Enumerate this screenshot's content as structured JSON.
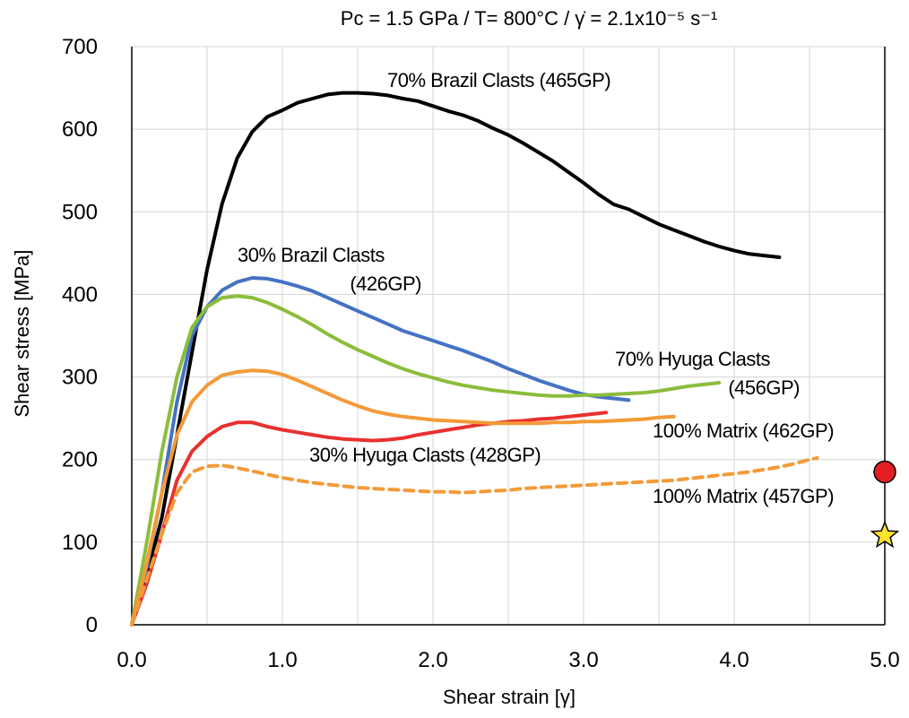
{
  "chart_data": {
    "type": "line",
    "title": "Pc = 1.5 GPa / T= 800°C / γ̇ = 2.1x10⁻⁵ s⁻¹",
    "xlabel": "Shear strain [γ]",
    "ylabel": "Shear stress [MPa]",
    "xlim": [
      0,
      5
    ],
    "ylim": [
      0,
      700
    ],
    "x_ticks": [
      "0.0",
      "1.0",
      "2.0",
      "3.0",
      "4.0",
      "5.0"
    ],
    "y_ticks": [
      "0",
      "100",
      "200",
      "300",
      "400",
      "500",
      "600",
      "700"
    ],
    "grid": true,
    "series": [
      {
        "name": "70% Brazil Clasts (465GP)",
        "color": "#000000",
        "dashed": false,
        "points": [
          [
            0,
            0
          ],
          [
            0.1,
            60
          ],
          [
            0.2,
            130
          ],
          [
            0.3,
            230
          ],
          [
            0.4,
            330
          ],
          [
            0.5,
            430
          ],
          [
            0.6,
            510
          ],
          [
            0.7,
            565
          ],
          [
            0.8,
            597
          ],
          [
            0.9,
            615
          ],
          [
            1.0,
            623
          ],
          [
            1.1,
            632
          ],
          [
            1.2,
            637
          ],
          [
            1.3,
            642
          ],
          [
            1.4,
            644
          ],
          [
            1.5,
            644
          ],
          [
            1.6,
            643
          ],
          [
            1.7,
            641
          ],
          [
            1.8,
            637
          ],
          [
            1.9,
            634
          ],
          [
            2.0,
            628
          ],
          [
            2.1,
            622
          ],
          [
            2.2,
            617
          ],
          [
            2.3,
            610
          ],
          [
            2.4,
            601
          ],
          [
            2.5,
            593
          ],
          [
            2.6,
            583
          ],
          [
            2.7,
            572
          ],
          [
            2.8,
            561
          ],
          [
            2.9,
            548
          ],
          [
            3.0,
            535
          ],
          [
            3.1,
            521
          ],
          [
            3.2,
            509
          ],
          [
            3.3,
            503
          ],
          [
            3.4,
            494
          ],
          [
            3.5,
            485
          ],
          [
            3.6,
            478
          ],
          [
            3.7,
            471
          ],
          [
            3.8,
            464
          ],
          [
            3.9,
            458
          ],
          [
            4.0,
            453
          ],
          [
            4.1,
            449
          ],
          [
            4.2,
            447
          ],
          [
            4.3,
            445
          ]
        ]
      },
      {
        "name": "30% Brazil Clasts (426GP)",
        "color": "#4472c4",
        "dashed": false,
        "points": [
          [
            0,
            0
          ],
          [
            0.1,
            70
          ],
          [
            0.2,
            160
          ],
          [
            0.3,
            270
          ],
          [
            0.4,
            350
          ],
          [
            0.5,
            385
          ],
          [
            0.6,
            405
          ],
          [
            0.7,
            415
          ],
          [
            0.8,
            420
          ],
          [
            0.9,
            419
          ],
          [
            1.0,
            415
          ],
          [
            1.1,
            410
          ],
          [
            1.2,
            404
          ],
          [
            1.3,
            396
          ],
          [
            1.4,
            388
          ],
          [
            1.5,
            380
          ],
          [
            1.6,
            372
          ],
          [
            1.7,
            364
          ],
          [
            1.8,
            356
          ],
          [
            1.9,
            350
          ],
          [
            2.0,
            344
          ],
          [
            2.1,
            338
          ],
          [
            2.2,
            332
          ],
          [
            2.3,
            325
          ],
          [
            2.4,
            318
          ],
          [
            2.5,
            310
          ],
          [
            2.6,
            303
          ],
          [
            2.7,
            296
          ],
          [
            2.8,
            290
          ],
          [
            2.9,
            284
          ],
          [
            3.0,
            279
          ],
          [
            3.1,
            276
          ],
          [
            3.2,
            274
          ],
          [
            3.3,
            272
          ]
        ]
      },
      {
        "name": "70% Hyuga Clasts (456GP)",
        "color": "#8bbd3c",
        "dashed": false,
        "points": [
          [
            0,
            0
          ],
          [
            0.1,
            100
          ],
          [
            0.2,
            210
          ],
          [
            0.3,
            300
          ],
          [
            0.4,
            360
          ],
          [
            0.5,
            385
          ],
          [
            0.6,
            396
          ],
          [
            0.7,
            398
          ],
          [
            0.8,
            396
          ],
          [
            0.9,
            390
          ],
          [
            1.0,
            382
          ],
          [
            1.1,
            373
          ],
          [
            1.2,
            363
          ],
          [
            1.3,
            352
          ],
          [
            1.4,
            342
          ],
          [
            1.5,
            333
          ],
          [
            1.6,
            325
          ],
          [
            1.7,
            317
          ],
          [
            1.8,
            310
          ],
          [
            1.9,
            304
          ],
          [
            2.0,
            299
          ],
          [
            2.1,
            294
          ],
          [
            2.2,
            290
          ],
          [
            2.3,
            287
          ],
          [
            2.4,
            284
          ],
          [
            2.5,
            282
          ],
          [
            2.6,
            280
          ],
          [
            2.7,
            278
          ],
          [
            2.8,
            277
          ],
          [
            2.9,
            277
          ],
          [
            3.0,
            278
          ],
          [
            3.1,
            278
          ],
          [
            3.2,
            279
          ],
          [
            3.3,
            280
          ],
          [
            3.4,
            281
          ],
          [
            3.5,
            283
          ],
          [
            3.6,
            286
          ],
          [
            3.7,
            289
          ],
          [
            3.8,
            291
          ],
          [
            3.9,
            293
          ]
        ]
      },
      {
        "name": "30% Hyuga Clasts (428GP)",
        "color": "#e8312f",
        "dashed": false,
        "points": [
          [
            0,
            0
          ],
          [
            0.1,
            50
          ],
          [
            0.2,
            110
          ],
          [
            0.3,
            175
          ],
          [
            0.4,
            210
          ],
          [
            0.5,
            228
          ],
          [
            0.6,
            240
          ],
          [
            0.7,
            245
          ],
          [
            0.8,
            245
          ],
          [
            0.9,
            240
          ],
          [
            1.0,
            236
          ],
          [
            1.1,
            233
          ],
          [
            1.2,
            230
          ],
          [
            1.3,
            227
          ],
          [
            1.4,
            225
          ],
          [
            1.5,
            224
          ],
          [
            1.6,
            223
          ],
          [
            1.7,
            224
          ],
          [
            1.8,
            226
          ],
          [
            1.9,
            230
          ],
          [
            2.0,
            233
          ],
          [
            2.1,
            236
          ],
          [
            2.2,
            239
          ],
          [
            2.3,
            242
          ],
          [
            2.4,
            244
          ],
          [
            2.5,
            246
          ],
          [
            2.6,
            247
          ],
          [
            2.7,
            249
          ],
          [
            2.8,
            250
          ],
          [
            2.9,
            252
          ],
          [
            3.0,
            254
          ],
          [
            3.1,
            256
          ],
          [
            3.15,
            257
          ]
        ]
      },
      {
        "name": "100% Matrix (462GP)",
        "color": "#f39a38",
        "dashed": false,
        "points": [
          [
            0,
            0
          ],
          [
            0.1,
            75
          ],
          [
            0.2,
            160
          ],
          [
            0.3,
            230
          ],
          [
            0.4,
            270
          ],
          [
            0.5,
            290
          ],
          [
            0.6,
            302
          ],
          [
            0.7,
            306
          ],
          [
            0.8,
            308
          ],
          [
            0.9,
            307
          ],
          [
            1.0,
            303
          ],
          [
            1.1,
            296
          ],
          [
            1.2,
            288
          ],
          [
            1.3,
            280
          ],
          [
            1.4,
            272
          ],
          [
            1.5,
            265
          ],
          [
            1.6,
            259
          ],
          [
            1.7,
            255
          ],
          [
            1.8,
            252
          ],
          [
            1.9,
            250
          ],
          [
            2.0,
            248
          ],
          [
            2.1,
            247
          ],
          [
            2.2,
            246
          ],
          [
            2.3,
            245
          ],
          [
            2.4,
            244
          ],
          [
            2.5,
            244
          ],
          [
            2.6,
            244
          ],
          [
            2.7,
            244
          ],
          [
            2.8,
            245
          ],
          [
            2.9,
            245
          ],
          [
            3.0,
            246
          ],
          [
            3.1,
            246
          ],
          [
            3.2,
            247
          ],
          [
            3.3,
            248
          ],
          [
            3.4,
            249
          ],
          [
            3.5,
            251
          ],
          [
            3.6,
            252
          ]
        ]
      },
      {
        "name": "100% Matrix (457GP)",
        "color": "#f39a38",
        "dashed": true,
        "points": [
          [
            0,
            0
          ],
          [
            0.1,
            55
          ],
          [
            0.2,
            110
          ],
          [
            0.3,
            160
          ],
          [
            0.4,
            185
          ],
          [
            0.5,
            192
          ],
          [
            0.6,
            193
          ],
          [
            0.7,
            190
          ],
          [
            0.8,
            186
          ],
          [
            0.9,
            182
          ],
          [
            1.0,
            178
          ],
          [
            1.1,
            175
          ],
          [
            1.2,
            172
          ],
          [
            1.3,
            170
          ],
          [
            1.4,
            168
          ],
          [
            1.5,
            166
          ],
          [
            1.6,
            165
          ],
          [
            1.7,
            164
          ],
          [
            1.8,
            163
          ],
          [
            1.9,
            162
          ],
          [
            2.0,
            161
          ],
          [
            2.1,
            161
          ],
          [
            2.2,
            160
          ],
          [
            2.3,
            161
          ],
          [
            2.4,
            162
          ],
          [
            2.5,
            163
          ],
          [
            2.6,
            165
          ],
          [
            2.7,
            166
          ],
          [
            2.8,
            167
          ],
          [
            2.9,
            168
          ],
          [
            3.0,
            169
          ],
          [
            3.1,
            170
          ],
          [
            3.2,
            171
          ],
          [
            3.3,
            172
          ],
          [
            3.4,
            173
          ],
          [
            3.5,
            174
          ],
          [
            3.6,
            175
          ],
          [
            3.7,
            177
          ],
          [
            3.8,
            179
          ],
          [
            3.9,
            181
          ],
          [
            4.0,
            183
          ],
          [
            4.1,
            185
          ],
          [
            4.2,
            188
          ],
          [
            4.3,
            191
          ],
          [
            4.4,
            195
          ],
          [
            4.5,
            200
          ],
          [
            4.55,
            202
          ]
        ]
      }
    ],
    "markers": [
      {
        "shape": "circle",
        "x": 5.0,
        "y": 185,
        "color": "#e31e24"
      },
      {
        "shape": "star",
        "x": 5.0,
        "y": 108,
        "color": "#ffe12e"
      }
    ]
  }
}
